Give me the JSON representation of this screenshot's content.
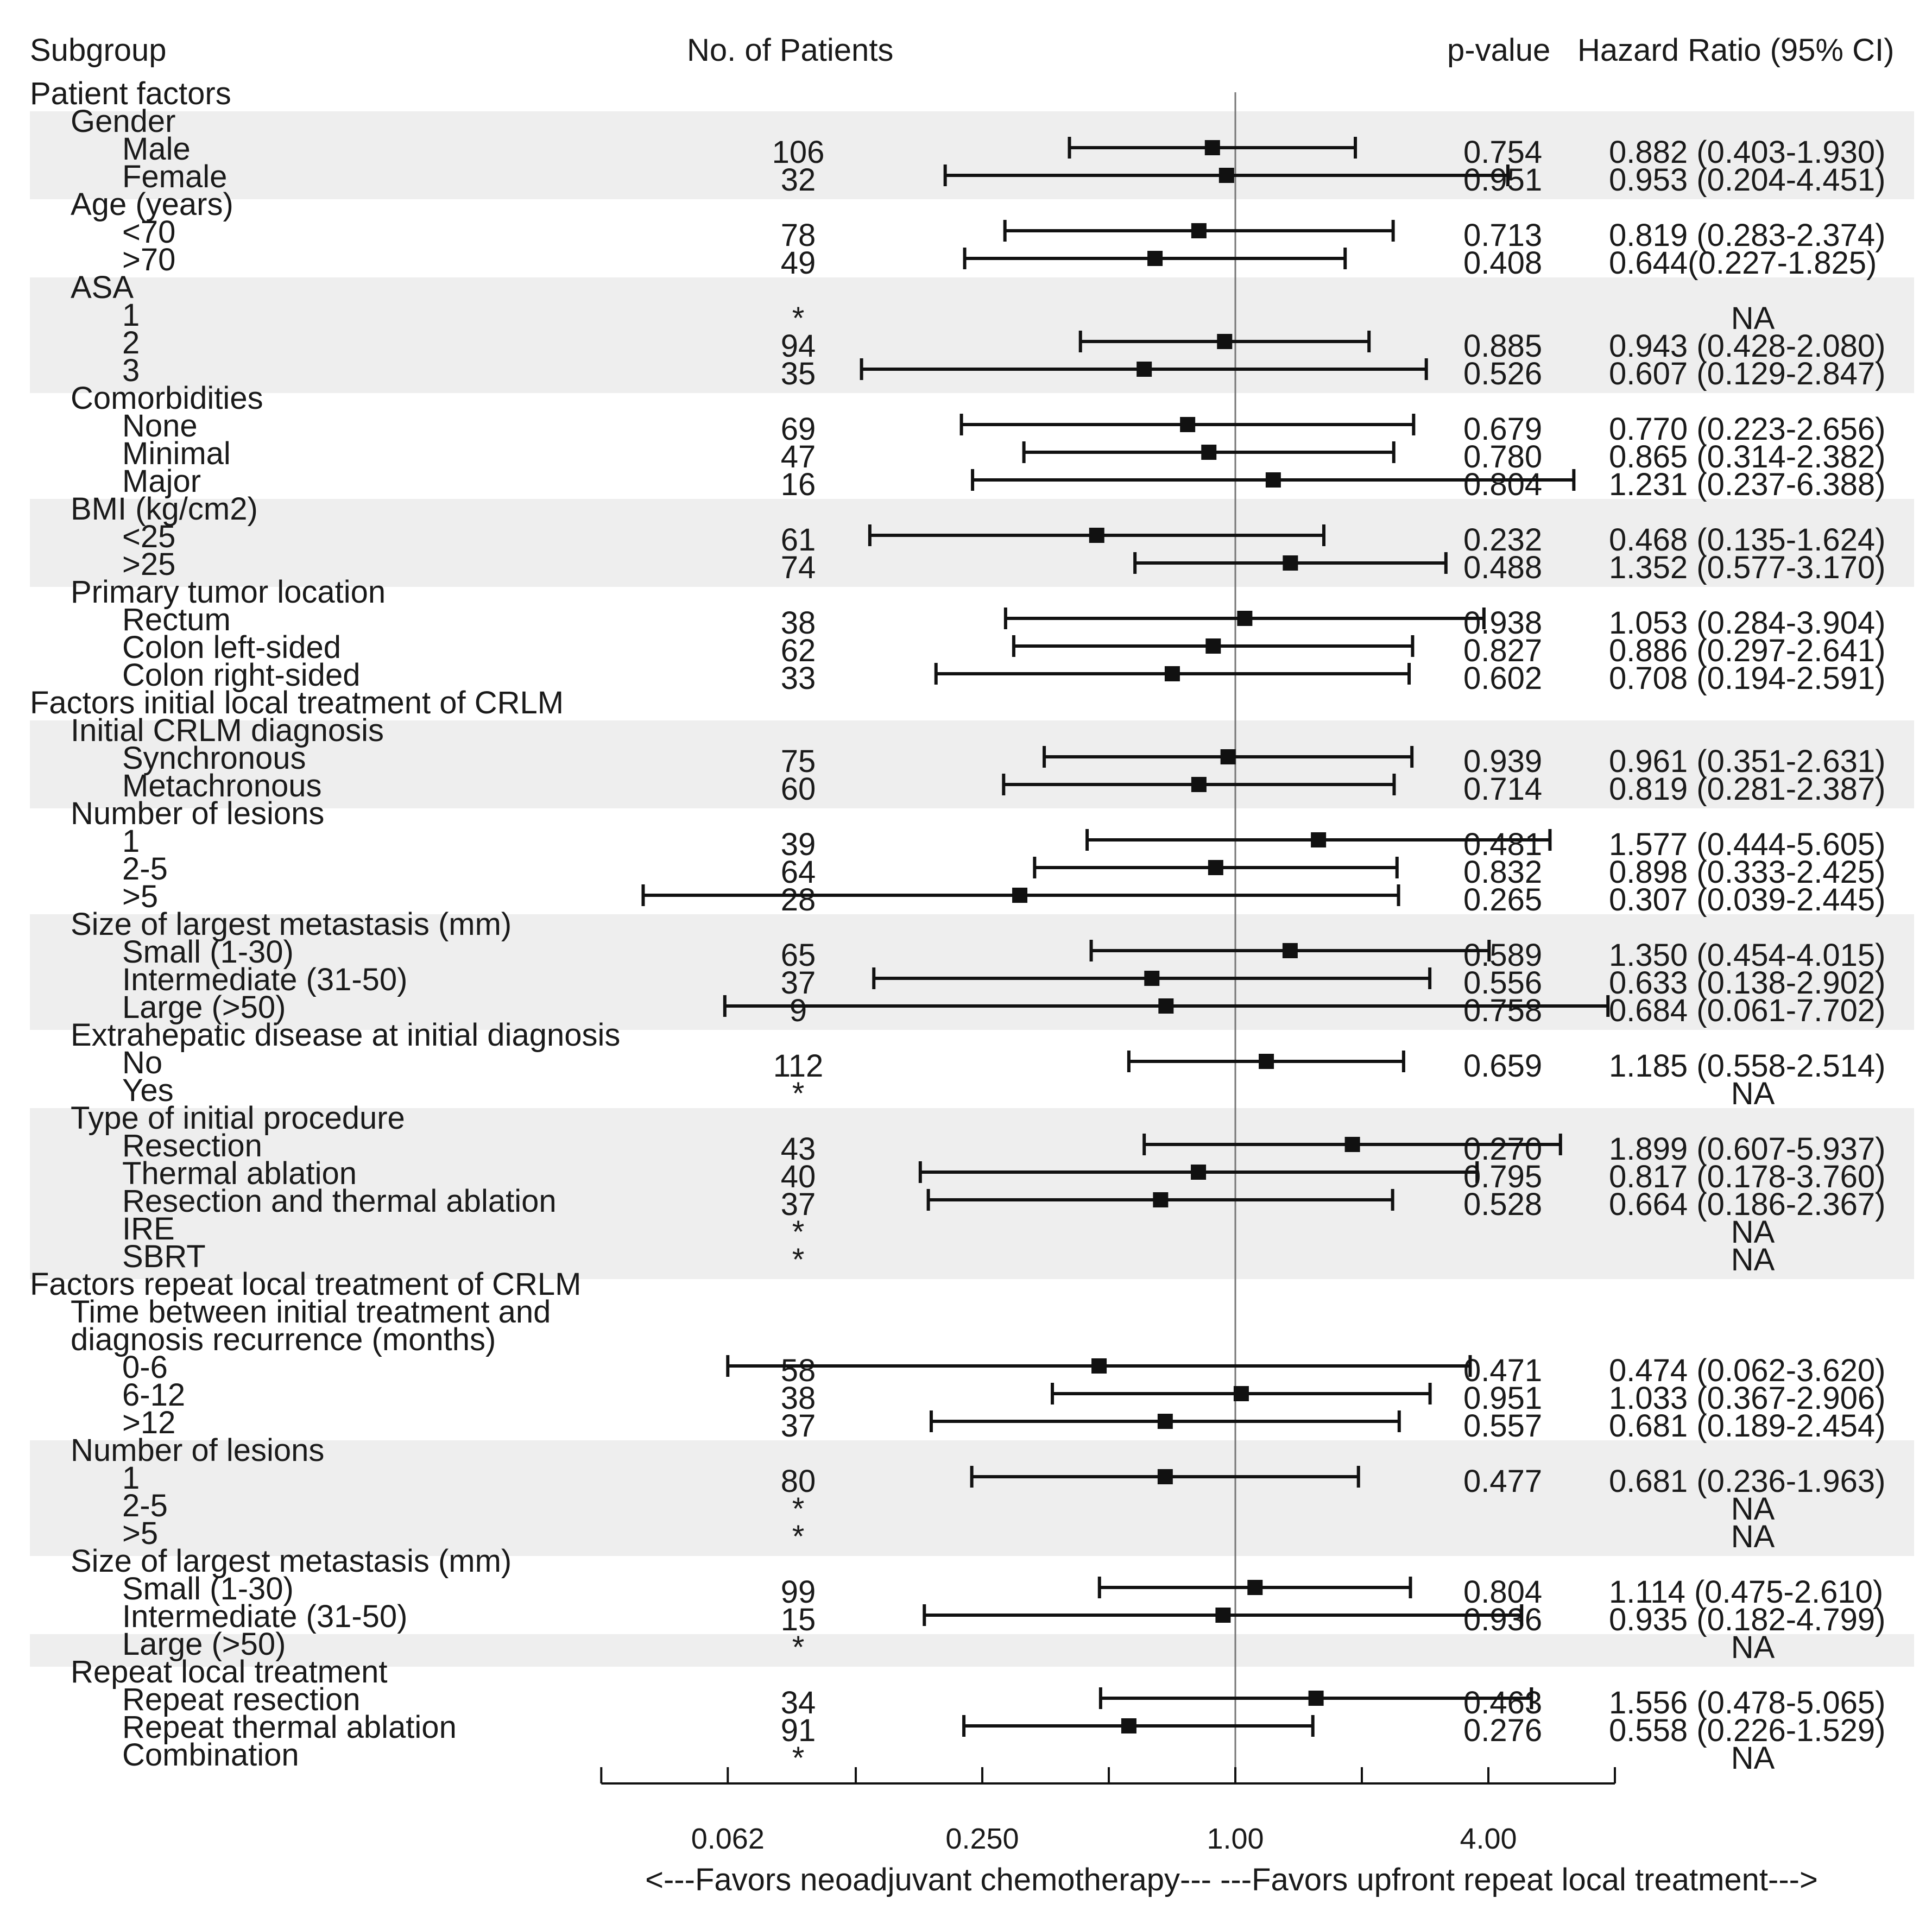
{
  "headers": {
    "subgroup": "Subgroup",
    "patients": "No. of Patients",
    "pvalue": "p-value",
    "hr": "Hazard Ratio (95% CI)"
  },
  "axis_ticks": [
    "0.062",
    "0.250",
    "1.00",
    "4.00"
  ],
  "favors_text": "<---Favors neoadjuvant chemotherapy---  ---Favors upfront repeat local treatment--->",
  "chart_data": {
    "type": "forest",
    "title": "",
    "xlabel": "<---Favors neoadjuvant chemotherapy---  ---Favors upfront repeat local treatment--->",
    "xscale": "log2",
    "xlim": [
      0.031,
      8
    ],
    "reference_line": 1,
    "xticks": [
      0.062,
      0.25,
      1,
      4
    ],
    "rows": [
      {
        "label": "Patient factors",
        "level": 0
      },
      {
        "label": "Gender",
        "level": 1
      },
      {
        "label": "Male",
        "level": 2,
        "n": "106",
        "p": "0.754",
        "hr_text": "0.882 (0.403-1.930)",
        "hr": 0.882,
        "lo": 0.403,
        "hi": 1.93
      },
      {
        "label": "Female",
        "level": 2,
        "n": "32",
        "p": "0.951",
        "hr_text": "0.953 (0.204-4.451)",
        "hr": 0.953,
        "lo": 0.204,
        "hi": 4.451
      },
      {
        "label": "Age (years)",
        "level": 1
      },
      {
        "label": "<70",
        "level": 2,
        "n": "78",
        "p": "0.713",
        "hr_text": "0.819 (0.283-2.374)",
        "hr": 0.819,
        "lo": 0.283,
        "hi": 2.374
      },
      {
        "label": ">70",
        "level": 2,
        "n": "49",
        "p": "0.408",
        "hr_text": "0.644(0.227-1.825)",
        "hr": 0.644,
        "lo": 0.227,
        "hi": 1.825
      },
      {
        "label": "ASA",
        "level": 1
      },
      {
        "label": "1",
        "level": 2,
        "n": "*",
        "p": "",
        "hr_text": "NA"
      },
      {
        "label": "2",
        "level": 2,
        "n": "94",
        "p": "0.885",
        "hr_text": "0.943 (0.428-2.080)",
        "hr": 0.943,
        "lo": 0.428,
        "hi": 2.08
      },
      {
        "label": "3",
        "level": 2,
        "n": "35",
        "p": "0.526",
        "hr_text": "0.607 (0.129-2.847)",
        "hr": 0.607,
        "lo": 0.129,
        "hi": 2.847
      },
      {
        "label": "Comorbidities",
        "level": 1
      },
      {
        "label": "None",
        "level": 2,
        "n": "69",
        "p": "0.679",
        "hr_text": "0.770 (0.223-2.656)",
        "hr": 0.77,
        "lo": 0.223,
        "hi": 2.656
      },
      {
        "label": "Minimal",
        "level": 2,
        "n": "47",
        "p": "0.780",
        "hr_text": "0.865 (0.314-2.382)",
        "hr": 0.865,
        "lo": 0.314,
        "hi": 2.382
      },
      {
        "label": "Major",
        "level": 2,
        "n": "16",
        "p": "0.804",
        "hr_text": "1.231 (0.237-6.388)",
        "hr": 1.231,
        "lo": 0.237,
        "hi": 6.388
      },
      {
        "label": "BMI (kg/cm2)",
        "level": 1
      },
      {
        "label": "<25",
        "level": 2,
        "n": "61",
        "p": "0.232",
        "hr_text": "0.468 (0.135-1.624)",
        "hr": 0.468,
        "lo": 0.135,
        "hi": 1.624
      },
      {
        "label": ">25",
        "level": 2,
        "n": "74",
        "p": "0.488",
        "hr_text": "1.352 (0.577-3.170)",
        "hr": 1.352,
        "lo": 0.577,
        "hi": 3.17
      },
      {
        "label": "Primary tumor location",
        "level": 1
      },
      {
        "label": "Rectum",
        "level": 2,
        "n": "38",
        "p": "0.938",
        "hr_text": "1.053 (0.284-3.904)",
        "hr": 1.053,
        "lo": 0.284,
        "hi": 3.904
      },
      {
        "label": "Colon left-sided",
        "level": 2,
        "n": "62",
        "p": "0.827",
        "hr_text": "0.886 (0.297-2.641)",
        "hr": 0.886,
        "lo": 0.297,
        "hi": 2.641
      },
      {
        "label": "Colon right-sided",
        "level": 2,
        "n": "33",
        "p": "0.602",
        "hr_text": "0.708 (0.194-2.591)",
        "hr": 0.708,
        "lo": 0.194,
        "hi": 2.591
      },
      {
        "label": "Factors initial local treatment of CRLM",
        "level": 0
      },
      {
        "label": "Initial CRLM diagnosis",
        "level": 1
      },
      {
        "label": "Synchronous",
        "level": 2,
        "n": "75",
        "p": "0.939",
        "hr_text": "0.961 (0.351-2.631)",
        "hr": 0.961,
        "lo": 0.351,
        "hi": 2.631
      },
      {
        "label": "Metachronous",
        "level": 2,
        "n": "60",
        "p": "0.714",
        "hr_text": "0.819 (0.281-2.387)",
        "hr": 0.819,
        "lo": 0.281,
        "hi": 2.387
      },
      {
        "label": "Number of lesions",
        "level": 1
      },
      {
        "label": "1",
        "level": 2,
        "n": "39",
        "p": "0.481",
        "hr_text": "1.577 (0.444-5.605)",
        "hr": 1.577,
        "lo": 0.444,
        "hi": 5.605
      },
      {
        "label": "2-5",
        "level": 2,
        "n": "64",
        "p": "0.832",
        "hr_text": "0.898 (0.333-2.425)",
        "hr": 0.898,
        "lo": 0.333,
        "hi": 2.425
      },
      {
        "label": ">5",
        "level": 2,
        "n": "28",
        "p": "0.265",
        "hr_text": "0.307 (0.039-2.445)",
        "hr": 0.307,
        "lo": 0.039,
        "hi": 2.445
      },
      {
        "label": "Size of largest metastasis (mm)",
        "level": 1
      },
      {
        "label": "Small (1-30)",
        "level": 2,
        "n": "65",
        "p": "0.589",
        "hr_text": "1.350 (0.454-4.015)",
        "hr": 1.35,
        "lo": 0.454,
        "hi": 4.015
      },
      {
        "label": "Intermediate (31-50)",
        "level": 2,
        "n": "37",
        "p": "0.556",
        "hr_text": "0.633 (0.138-2.902)",
        "hr": 0.633,
        "lo": 0.138,
        "hi": 2.902
      },
      {
        "label": "Large (>50)",
        "level": 2,
        "n": "9",
        "p": "0.758",
        "hr_text": "0.684 (0.061-7.702)",
        "hr": 0.684,
        "lo": 0.061,
        "hi": 7.702
      },
      {
        "label": "Extrahepatic disease at initial diagnosis",
        "level": 1
      },
      {
        "label": "No",
        "level": 2,
        "n": "112",
        "p": "0.659",
        "hr_text": "1.185 (0.558-2.514)",
        "hr": 1.185,
        "lo": 0.558,
        "hi": 2.514
      },
      {
        "label": "Yes",
        "level": 2,
        "n": "*",
        "p": "",
        "hr_text": "NA"
      },
      {
        "label": "Type of initial procedure",
        "level": 1
      },
      {
        "label": "Resection",
        "level": 2,
        "n": "43",
        "p": "0.270",
        "hr_text": "1.899 (0.607-5.937)",
        "hr": 1.899,
        "lo": 0.607,
        "hi": 5.937
      },
      {
        "label": "Thermal ablation",
        "level": 2,
        "n": "40",
        "p": "0.795",
        "hr_text": "0.817 (0.178-3.760)",
        "hr": 0.817,
        "lo": 0.178,
        "hi": 3.76
      },
      {
        "label": "Resection and thermal ablation",
        "level": 2,
        "n": "37",
        "p": "0.528",
        "hr_text": "0.664 (0.186-2.367)",
        "hr": 0.664,
        "lo": 0.186,
        "hi": 2.367
      },
      {
        "label": "IRE",
        "level": 2,
        "n": "*",
        "p": "",
        "hr_text": "NA"
      },
      {
        "label": "SBRT",
        "level": 2,
        "n": "*",
        "p": "",
        "hr_text": "NA"
      },
      {
        "label": "Factors repeat local treatment of CRLM",
        "level": 0
      },
      {
        "label": "Time between initial treatment and",
        "level": 1
      },
      {
        "label": "diagnosis recurrence (months)",
        "level": 1
      },
      {
        "label": "0-6",
        "level": 2,
        "n": "58",
        "p": "0.471",
        "hr_text": "0.474 (0.062-3.620)",
        "hr": 0.474,
        "lo": 0.062,
        "hi": 3.62
      },
      {
        "label": "6-12",
        "level": 2,
        "n": "38",
        "p": "0.951",
        "hr_text": "1.033 (0.367-2.906)",
        "hr": 1.033,
        "lo": 0.367,
        "hi": 2.906
      },
      {
        "label": ">12",
        "level": 2,
        "n": "37",
        "p": "0.557",
        "hr_text": "0.681 (0.189-2.454)",
        "hr": 0.681,
        "lo": 0.189,
        "hi": 2.454
      },
      {
        "label": "Number of lesions",
        "level": 1
      },
      {
        "label": "1",
        "level": 2,
        "n": "80",
        "p": "0.477",
        "hr_text": "0.681 (0.236-1.963)",
        "hr": 0.681,
        "lo": 0.236,
        "hi": 1.963
      },
      {
        "label": "2-5",
        "level": 2,
        "n": "*",
        "p": "",
        "hr_text": "NA"
      },
      {
        "label": ">5",
        "level": 2,
        "n": "*",
        "p": "",
        "hr_text": "NA"
      },
      {
        "label": "Size of largest metastasis (mm)",
        "level": 1
      },
      {
        "label": "Small (1-30)",
        "level": 2,
        "n": "99",
        "p": "0.804",
        "hr_text": "1.114 (0.475-2.610)",
        "hr": 1.114,
        "lo": 0.475,
        "hi": 2.61
      },
      {
        "label": "Intermediate (31-50)",
        "level": 2,
        "n": "15",
        "p": "0.936",
        "hr_text": "0.935 (0.182-4.799)",
        "hr": 0.935,
        "lo": 0.182,
        "hi": 4.799
      },
      {
        "label": "Large (>50)",
        "level": 2,
        "n": "*",
        "p": "",
        "hr_text": "NA"
      },
      {
        "label": "Repeat local treatment",
        "level": 1
      },
      {
        "label": "Repeat resection",
        "level": 2,
        "n": "34",
        "p": "0.463",
        "hr_text": "1.556 (0.478-5.065)",
        "hr": 1.556,
        "lo": 0.478,
        "hi": 5.065
      },
      {
        "label": "Repeat thermal ablation",
        "level": 2,
        "n": "91",
        "p": "0.276",
        "hr_text": "0.558 (0.226-1.529)",
        "hr": 0.558,
        "lo": 0.226,
        "hi": 1.529
      },
      {
        "label": "Combination",
        "level": 2,
        "n": "*",
        "p": "",
        "hr_text": "NA"
      }
    ],
    "shaded_groups": [
      1,
      7,
      15,
      23,
      30,
      37,
      49,
      56
    ]
  }
}
